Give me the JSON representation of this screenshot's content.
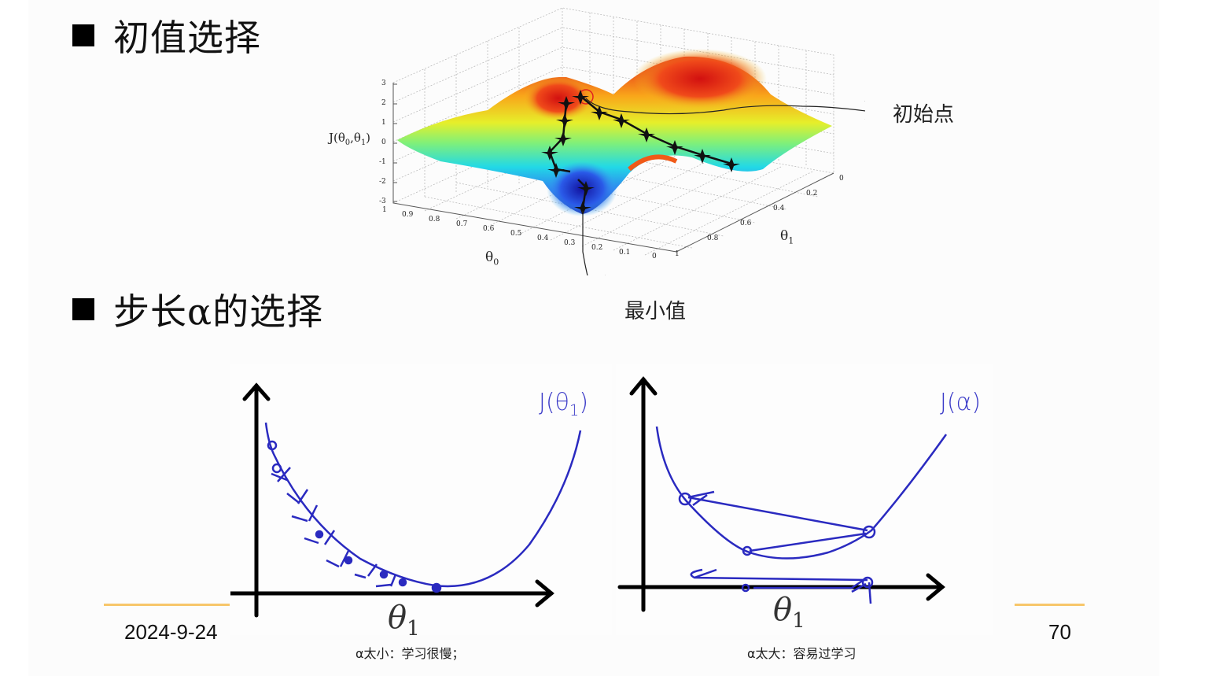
{
  "slide": {
    "sections": [
      {
        "bullet_icon": "black-square",
        "title": "初值选择"
      },
      {
        "bullet_icon": "black-square",
        "title": "步长α的选择"
      }
    ],
    "figure_3d": {
      "z_axis_label": "J(θ0,θ1)",
      "z_ticks": [
        "3",
        "2",
        "1",
        "0",
        "-1",
        "-2",
        "-3"
      ],
      "theta0_label": "θ0",
      "theta0_ticks": [
        "1",
        "0.9",
        "0.8",
        "0.7",
        "0.6",
        "0.5",
        "0.4",
        "0.3",
        "0.2",
        "0.1",
        "0"
      ],
      "theta1_label": "θ1",
      "theta1_ticks": [
        "0",
        "0.2",
        "0.4",
        "0.6",
        "0.8",
        "1"
      ],
      "callout_start": "初始点",
      "callout_min": "最小值"
    },
    "sketches": [
      {
        "curve_label": "J(θ1)",
        "x_label": "θ1",
        "caption": "α太小：学习很慢；"
      },
      {
        "curve_label": "J(α)",
        "x_label": "θ1",
        "caption": "α太大：容易过学习"
      }
    ],
    "footer": {
      "date": "2024-9-24",
      "page": "70"
    },
    "colors": {
      "accent_line": "#f7c66a",
      "sketch_ink": "#2a2ac0",
      "background": "#fcfcfc"
    }
  }
}
